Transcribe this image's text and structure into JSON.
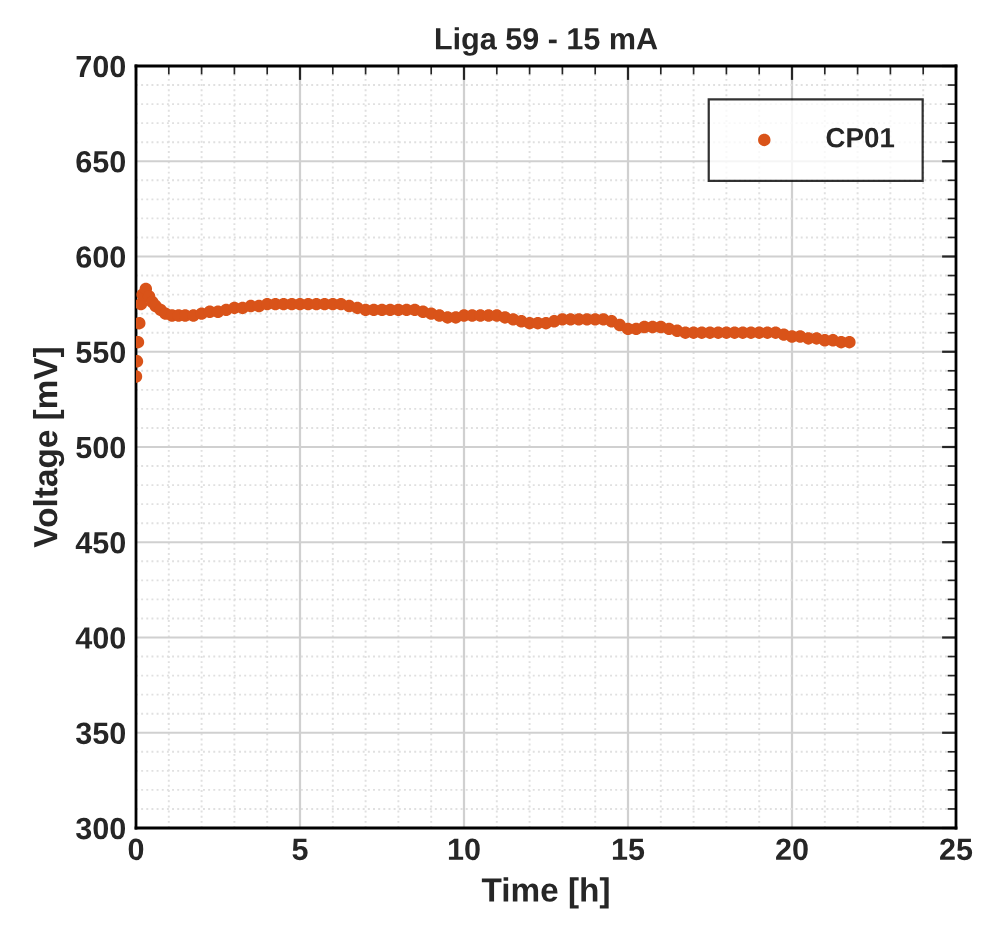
{
  "chart_data": {
    "type": "scatter",
    "title": "Liga 59 - 15 mA",
    "xlabel": "Time [h]",
    "ylabel": "Voltage [mV]",
    "xlim": [
      0,
      25
    ],
    "xticks": [
      0,
      5,
      10,
      15,
      20,
      25
    ],
    "ylim": [
      300,
      700
    ],
    "yticks": [
      300,
      350,
      400,
      450,
      500,
      550,
      600,
      650,
      700
    ],
    "grid": true,
    "legend": "top right",
    "marker": "circle",
    "series": [
      {
        "name": "CP01",
        "color": "#d95319",
        "x": [
          0,
          0.03,
          0.06,
          0.1,
          0.15,
          0.2,
          0.3,
          0.4,
          0.5,
          0.6,
          0.75,
          0.9,
          1.1,
          1.3,
          1.5,
          1.75,
          2,
          2.25,
          2.5,
          2.75,
          3,
          3.25,
          3.5,
          3.75,
          4,
          4.25,
          4.5,
          4.75,
          5,
          5.25,
          5.5,
          5.75,
          6,
          6.25,
          6.5,
          6.75,
          7,
          7.25,
          7.5,
          7.75,
          8,
          8.25,
          8.5,
          8.75,
          9,
          9.25,
          9.5,
          9.75,
          10,
          10.25,
          10.5,
          10.75,
          11,
          11.25,
          11.5,
          11.75,
          12,
          12.25,
          12.5,
          12.75,
          13,
          13.25,
          13.5,
          13.75,
          14,
          14.25,
          14.5,
          14.75,
          15,
          15.25,
          15.5,
          15.75,
          16,
          16.25,
          16.5,
          16.75,
          17,
          17.25,
          17.5,
          17.75,
          18,
          18.25,
          18.5,
          18.75,
          19,
          19.25,
          19.5,
          19.75,
          20,
          20.25,
          20.5,
          20.75,
          21,
          21.25,
          21.5,
          21.75
        ],
        "values": [
          537,
          545,
          555,
          565,
          575,
          580,
          583,
          579,
          576,
          574,
          572,
          570,
          569,
          569,
          569,
          569,
          570,
          571,
          571,
          572,
          573,
          573,
          574,
          574,
          575,
          575,
          575,
          575,
          575,
          575,
          575,
          575,
          575,
          575,
          574,
          573,
          572,
          572,
          572,
          572,
          572,
          572,
          572,
          571,
          570,
          569,
          568,
          568,
          569,
          569,
          569,
          569,
          569,
          568,
          567,
          566,
          565,
          565,
          565,
          566,
          567,
          567,
          567,
          567,
          567,
          567,
          566,
          564,
          562,
          562,
          563,
          563,
          563,
          562,
          561,
          560,
          560,
          560,
          560,
          560,
          560,
          560,
          560,
          560,
          560,
          560,
          560,
          559,
          558,
          558,
          557,
          557,
          556,
          556,
          555,
          555
        ]
      }
    ]
  }
}
